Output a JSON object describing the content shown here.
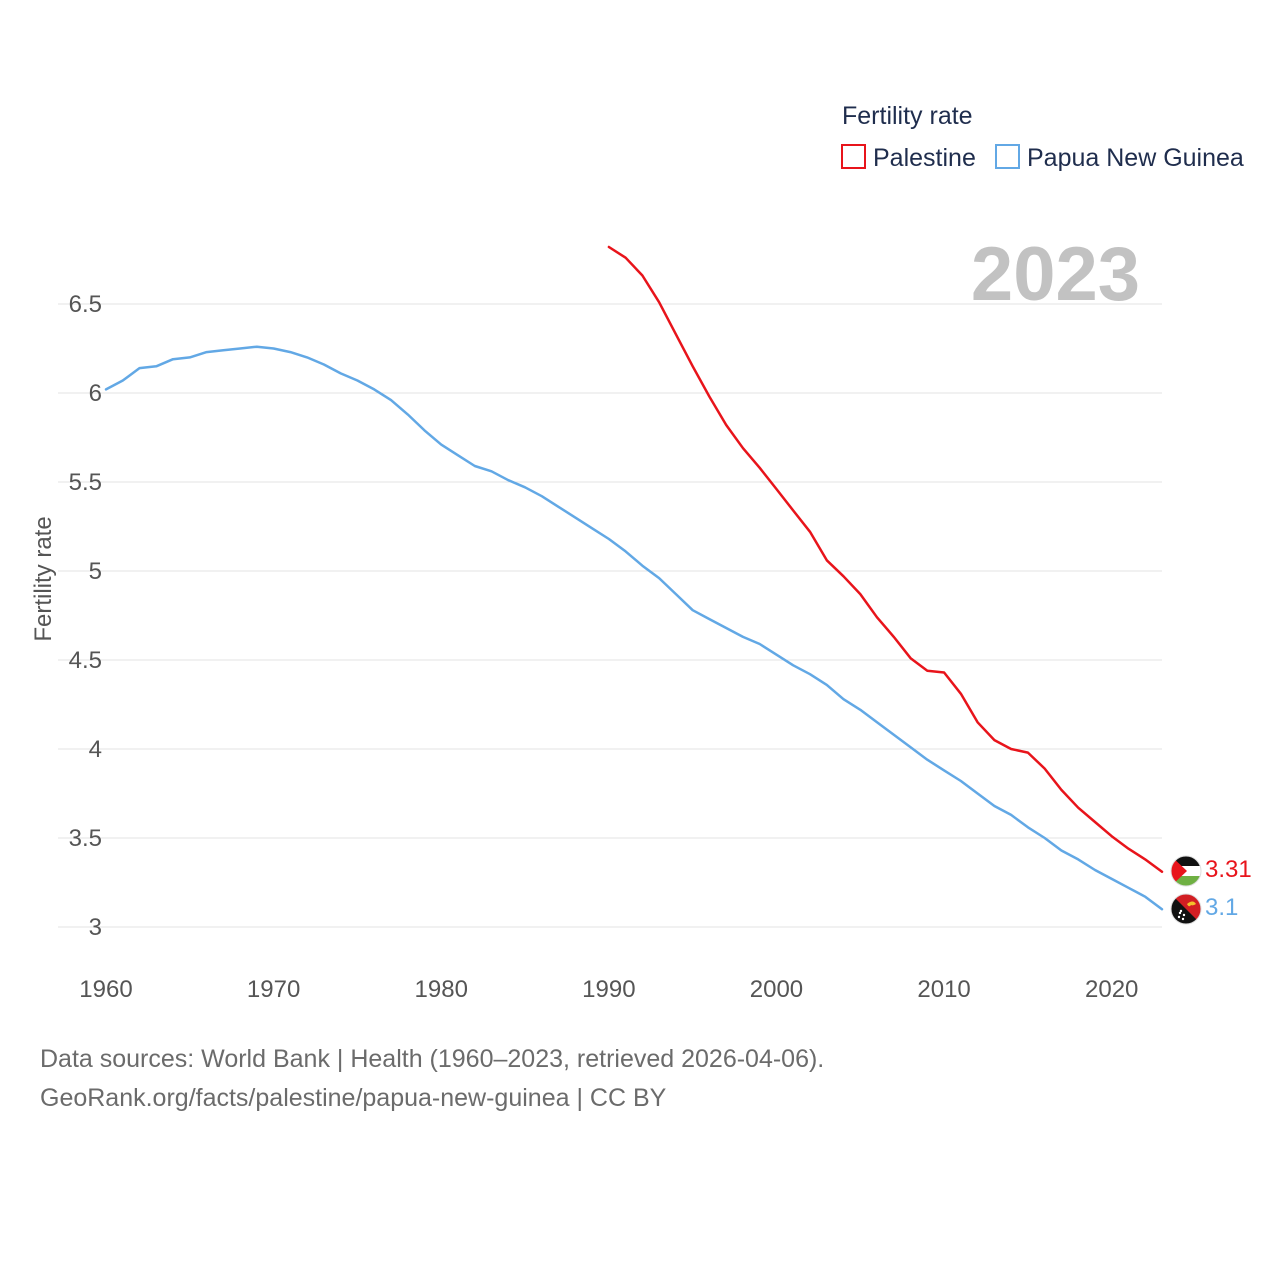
{
  "chart_data": {
    "type": "line",
    "title": "",
    "ylabel": "Fertility rate",
    "xlabel": "",
    "xlim": [
      1960,
      2023
    ],
    "ylim": [
      2.85,
      6.88
    ],
    "xticks": [
      "1960",
      "1970",
      "1980",
      "1990",
      "2000",
      "2010",
      "2020"
    ],
    "yticks": [
      "3",
      "3.5",
      "4",
      "4.5",
      "5",
      "5.5",
      "6",
      "6.5"
    ],
    "grid": "horizontal",
    "legend": {
      "title": "Fertility rate",
      "placement": "top-right"
    },
    "year_label": "2023",
    "series": [
      {
        "name": "Palestine",
        "color": "#e8141b",
        "end_label": "3.31",
        "flag": "palestine-flag",
        "x": [
          1990,
          1991,
          1992,
          1993,
          1994,
          1995,
          1996,
          1997,
          1998,
          1999,
          2000,
          2001,
          2002,
          2003,
          2004,
          2005,
          2006,
          2007,
          2008,
          2009,
          2010,
          2011,
          2012,
          2013,
          2014,
          2015,
          2016,
          2017,
          2018,
          2019,
          2020,
          2021,
          2022,
          2023
        ],
        "values": [
          6.82,
          6.76,
          6.66,
          6.51,
          6.33,
          6.15,
          5.98,
          5.82,
          5.69,
          5.58,
          5.46,
          5.34,
          5.22,
          5.06,
          4.97,
          4.87,
          4.74,
          4.63,
          4.51,
          4.44,
          4.43,
          4.31,
          4.15,
          4.05,
          4.0,
          3.98,
          3.89,
          3.77,
          3.67,
          3.59,
          3.51,
          3.44,
          3.38,
          3.31
        ]
      },
      {
        "name": "Papua New Guinea",
        "color": "#62a8e5",
        "end_label": "3.1",
        "flag": "papua-new-guinea-flag",
        "x": [
          1960,
          1961,
          1962,
          1963,
          1964,
          1965,
          1966,
          1967,
          1968,
          1969,
          1970,
          1971,
          1972,
          1973,
          1974,
          1975,
          1976,
          1977,
          1978,
          1979,
          1980,
          1981,
          1982,
          1983,
          1984,
          1985,
          1986,
          1987,
          1988,
          1989,
          1990,
          1991,
          1992,
          1993,
          1994,
          1995,
          1996,
          1997,
          1998,
          1999,
          2000,
          2001,
          2002,
          2003,
          2004,
          2005,
          2006,
          2007,
          2008,
          2009,
          2010,
          2011,
          2012,
          2013,
          2014,
          2015,
          2016,
          2017,
          2018,
          2019,
          2020,
          2021,
          2022,
          2023
        ],
        "values": [
          6.02,
          6.07,
          6.14,
          6.15,
          6.19,
          6.2,
          6.23,
          6.24,
          6.25,
          6.26,
          6.25,
          6.23,
          6.2,
          6.16,
          6.11,
          6.07,
          6.02,
          5.96,
          5.88,
          5.79,
          5.71,
          5.65,
          5.59,
          5.56,
          5.51,
          5.47,
          5.42,
          5.36,
          5.3,
          5.24,
          5.18,
          5.11,
          5.03,
          4.96,
          4.87,
          4.78,
          4.73,
          4.68,
          4.63,
          4.59,
          4.53,
          4.47,
          4.42,
          4.36,
          4.28,
          4.22,
          4.15,
          4.08,
          4.01,
          3.94,
          3.88,
          3.82,
          3.75,
          3.68,
          3.63,
          3.56,
          3.5,
          3.43,
          3.38,
          3.32,
          3.27,
          3.22,
          3.17,
          3.1
        ]
      }
    ]
  },
  "footer": {
    "sources": "Data sources: World Bank | Health (1960–2023, retrieved 2026-04-06).",
    "url": "GeoRank.org/facts/palestine/papua-new-guinea | CC BY"
  }
}
